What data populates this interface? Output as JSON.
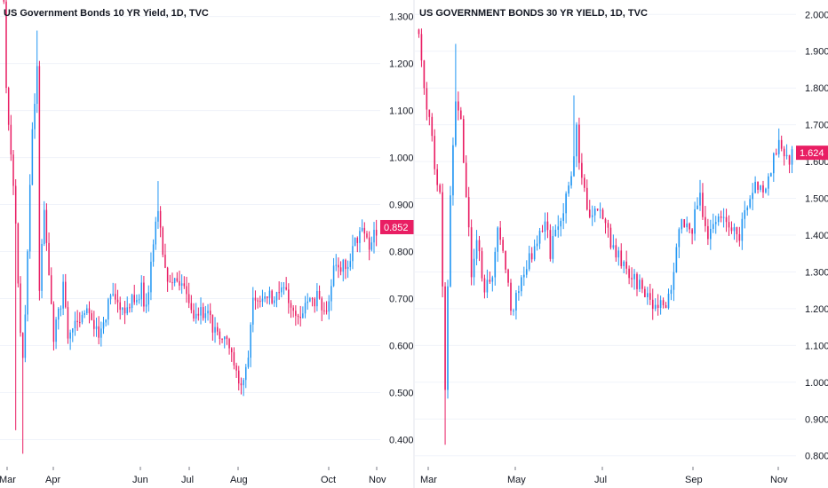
{
  "colors": {
    "up": "#2196f3",
    "down": "#e91e63",
    "grid": "#f0f3fa",
    "axis_text": "#131722",
    "last_price_bg": "#e91e63",
    "divider": "#e0e3eb"
  },
  "chart_data": [
    {
      "type": "candlestick",
      "title": "US Government Bonds 10 YR Yield, 1D, TVC",
      "ylim": [
        0.35,
        1.32
      ],
      "yticks": [
        "1.300",
        "1.200",
        "1.100",
        "1.000",
        "0.900",
        "0.800",
        "0.700",
        "0.600",
        "0.500",
        "0.400"
      ],
      "xticks": [
        "Mar",
        "Apr",
        "Jun",
        "Jul",
        "Aug",
        "Oct",
        "Nov"
      ],
      "last_value": "0.852",
      "keypoints": [
        [
          0,
          1.32
        ],
        [
          1,
          1.16
        ],
        [
          3,
          1.0
        ],
        [
          5,
          0.87
        ],
        [
          7,
          0.62
        ],
        [
          8,
          0.56
        ],
        [
          10,
          0.8
        ],
        [
          12,
          1.05
        ],
        [
          14,
          1.18
        ],
        [
          15,
          0.72
        ],
        [
          17,
          0.88
        ],
        [
          19,
          0.75
        ],
        [
          21,
          0.62
        ],
        [
          25,
          0.72
        ],
        [
          27,
          0.62
        ],
        [
          30,
          0.65
        ],
        [
          35,
          0.68
        ],
        [
          40,
          0.62
        ],
        [
          45,
          0.7
        ],
        [
          50,
          0.68
        ],
        [
          55,
          0.7
        ],
        [
          58,
          0.72
        ],
        [
          60,
          0.68
        ],
        [
          65,
          0.9
        ],
        [
          67,
          0.78
        ],
        [
          70,
          0.72
        ],
        [
          75,
          0.74
        ],
        [
          80,
          0.66
        ],
        [
          85,
          0.67
        ],
        [
          90,
          0.62
        ],
        [
          95,
          0.6
        ],
        [
          100,
          0.52
        ],
        [
          103,
          0.58
        ],
        [
          105,
          0.7
        ],
        [
          110,
          0.7
        ],
        [
          115,
          0.7
        ],
        [
          118,
          0.73
        ],
        [
          122,
          0.66
        ],
        [
          128,
          0.68
        ],
        [
          132,
          0.7
        ],
        [
          135,
          0.66
        ],
        [
          140,
          0.78
        ],
        [
          145,
          0.76
        ],
        [
          150,
          0.85
        ],
        [
          154,
          0.82
        ],
        [
          157,
          0.85
        ]
      ],
      "spikes": [
        [
          5,
          0.42
        ],
        [
          8,
          0.37
        ],
        [
          14,
          1.27
        ],
        [
          65,
          0.95
        ]
      ]
    },
    {
      "type": "candlestick",
      "title": "US GOVERNMENT BONDS 30 YR YIELD, 1D, TVC",
      "ylim": [
        0.78,
        2.02
      ],
      "yticks": [
        "2.000",
        "1.900",
        "1.800",
        "1.700",
        "1.600",
        "1.500",
        "1.400",
        "1.300",
        "1.200",
        "1.100",
        "1.000",
        "0.900",
        "0.800"
      ],
      "xticks": [
        "Mar",
        "May",
        "Jul",
        "Sep",
        "Nov"
      ],
      "last_value": "1.624",
      "keypoints": [
        [
          0,
          1.95
        ],
        [
          2,
          1.8
        ],
        [
          4,
          1.72
        ],
        [
          6,
          1.6
        ],
        [
          8,
          1.5
        ],
        [
          9,
          1.25
        ],
        [
          10,
          1.0
        ],
        [
          12,
          1.5
        ],
        [
          14,
          1.75
        ],
        [
          16,
          1.7
        ],
        [
          18,
          1.5
        ],
        [
          20,
          1.3
        ],
        [
          22,
          1.4
        ],
        [
          25,
          1.25
        ],
        [
          28,
          1.3
        ],
        [
          30,
          1.4
        ],
        [
          32,
          1.35
        ],
        [
          35,
          1.2
        ],
        [
          38,
          1.25
        ],
        [
          40,
          1.3
        ],
        [
          45,
          1.38
        ],
        [
          48,
          1.45
        ],
        [
          50,
          1.35
        ],
        [
          55,
          1.48
        ],
        [
          58,
          1.58
        ],
        [
          60,
          1.68
        ],
        [
          62,
          1.55
        ],
        [
          65,
          1.45
        ],
        [
          68,
          1.48
        ],
        [
          72,
          1.4
        ],
        [
          75,
          1.35
        ],
        [
          80,
          1.3
        ],
        [
          85,
          1.25
        ],
        [
          88,
          1.22
        ],
        [
          90,
          1.2
        ],
        [
          95,
          1.22
        ],
        [
          98,
          1.35
        ],
        [
          100,
          1.45
        ],
        [
          103,
          1.4
        ],
        [
          107,
          1.5
        ],
        [
          110,
          1.4
        ],
        [
          113,
          1.45
        ],
        [
          118,
          1.42
        ],
        [
          122,
          1.4
        ],
        [
          125,
          1.48
        ],
        [
          128,
          1.55
        ],
        [
          131,
          1.5
        ],
        [
          134,
          1.58
        ],
        [
          137,
          1.65
        ],
        [
          140,
          1.6
        ],
        [
          142,
          1.62
        ]
      ],
      "spikes": [
        [
          10,
          0.83
        ],
        [
          14,
          1.92
        ],
        [
          59,
          1.78
        ],
        [
          107,
          1.55
        ],
        [
          137,
          1.69
        ]
      ]
    }
  ]
}
